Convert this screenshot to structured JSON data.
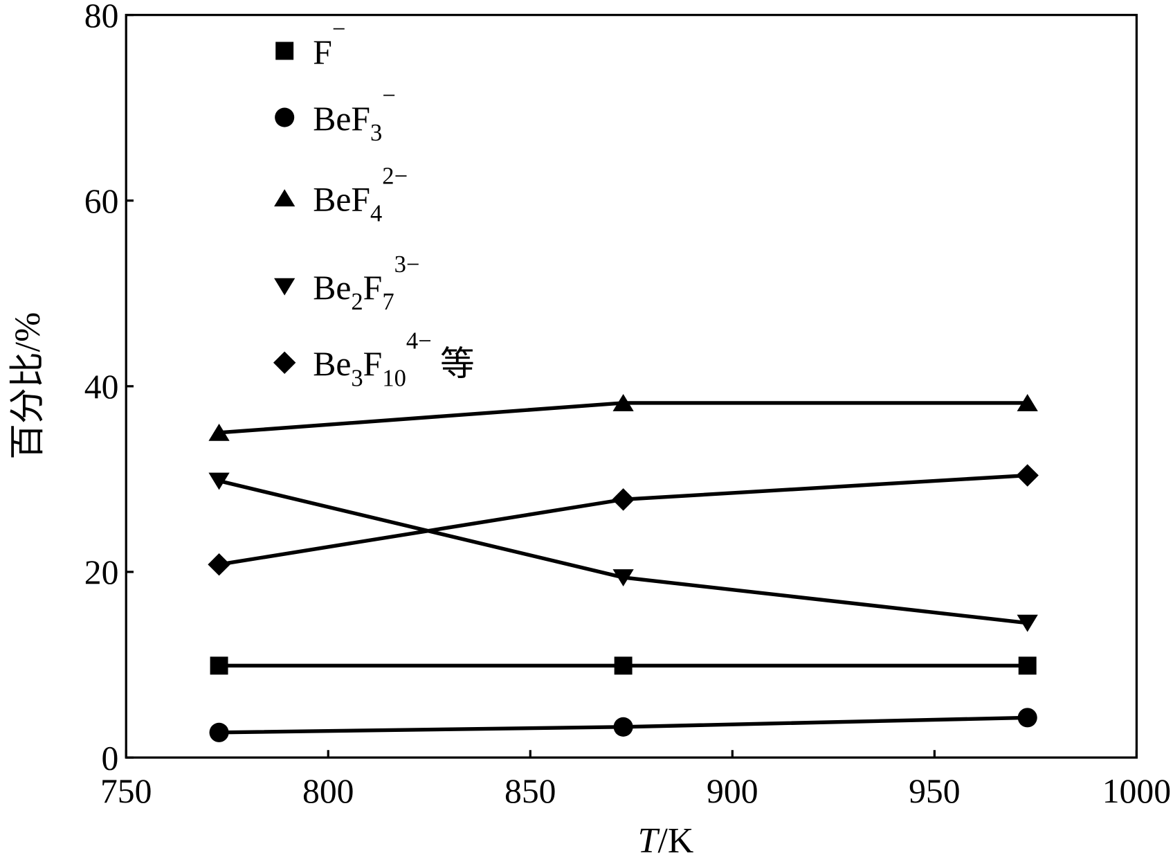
{
  "chart_data": {
    "type": "line",
    "title": "",
    "xlabel": {
      "italic": "T",
      "rest": "/K"
    },
    "ylabel": "百分比/%",
    "xlim": [
      750,
      1000
    ],
    "ylim": [
      0,
      80
    ],
    "xticks": [
      750,
      800,
      850,
      900,
      950,
      1000
    ],
    "yticks": [
      0,
      20,
      40,
      60,
      80
    ],
    "grid": false,
    "legend_position": "top-left",
    "x": [
      773,
      873,
      973
    ],
    "series": [
      {
        "name": "F−",
        "marker": "square",
        "label": [
          {
            "t": "F"
          },
          {
            "t": "−",
            "s": "sup"
          }
        ],
        "values": [
          9.9,
          9.9,
          9.9
        ]
      },
      {
        "name": "BeF3−",
        "marker": "circle",
        "label": [
          {
            "t": "BeF"
          },
          {
            "t": "3",
            "s": "sub"
          },
          {
            "t": "−",
            "s": "sup"
          }
        ],
        "values": [
          2.7,
          3.3,
          4.3
        ]
      },
      {
        "name": "BeF4 2−",
        "marker": "triangle-up",
        "label": [
          {
            "t": "BeF"
          },
          {
            "t": "4",
            "s": "sub"
          },
          {
            "t": "2−",
            "s": "sup"
          }
        ],
        "values": [
          35.0,
          38.2,
          38.2
        ]
      },
      {
        "name": "Be2F7 3−",
        "marker": "triangle-down",
        "label": [
          {
            "t": "Be"
          },
          {
            "t": "2",
            "s": "sub"
          },
          {
            "t": "F"
          },
          {
            "t": "7",
            "s": "sub"
          },
          {
            "t": "3−",
            "s": "sup"
          }
        ],
        "values": [
          29.8,
          19.4,
          14.5
        ]
      },
      {
        "name": "Be3F10 4− 等",
        "marker": "diamond",
        "label": [
          {
            "t": "Be"
          },
          {
            "t": "3",
            "s": "sub"
          },
          {
            "t": "F"
          },
          {
            "t": "10",
            "s": "sub"
          },
          {
            "t": "4−",
            "s": "sup"
          },
          {
            "t": " 等"
          }
        ],
        "values": [
          20.8,
          27.8,
          30.4
        ]
      }
    ]
  }
}
